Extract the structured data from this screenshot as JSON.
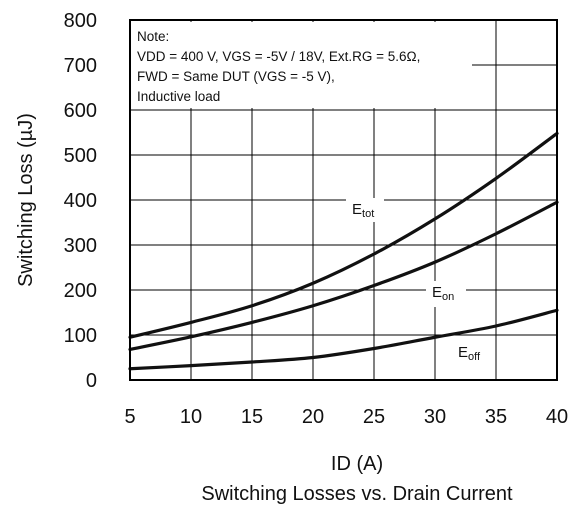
{
  "chart_data": {
    "type": "line",
    "title": "Switching Losses vs. Drain Current",
    "xlabel": "ID (A)",
    "ylabel": "Switching Loss  (µJ)",
    "xlim": [
      5,
      40
    ],
    "ylim": [
      0,
      800
    ],
    "x_ticks": [
      "5",
      "10",
      "15",
      "20",
      "25",
      "30",
      "35",
      "40"
    ],
    "y_ticks": [
      "0",
      "100",
      "200",
      "300",
      "400",
      "500",
      "600",
      "700",
      "800"
    ],
    "grid": true,
    "note_lines": [
      "Note:",
      "VDD = 400 V, VGS = -5V / 18V, Ext.RG = 5.6Ω,",
      "FWD = Same DUT (VGS = -5 V),",
      "Inductive load"
    ],
    "series": [
      {
        "name": "Etot",
        "x": [
          5,
          10,
          15,
          20,
          25,
          30,
          35,
          40
        ],
        "y": [
          95,
          128,
          165,
          215,
          280,
          358,
          448,
          548
        ]
      },
      {
        "name": "Eon",
        "x": [
          5,
          10,
          15,
          20,
          25,
          30,
          35,
          40
        ],
        "y": [
          68,
          96,
          128,
          165,
          210,
          262,
          325,
          395
        ]
      },
      {
        "name": "Eoff",
        "x": [
          5,
          10,
          15,
          20,
          25,
          30,
          35,
          40
        ],
        "y": [
          25,
          32,
          40,
          50,
          70,
          95,
          120,
          155
        ]
      }
    ]
  }
}
